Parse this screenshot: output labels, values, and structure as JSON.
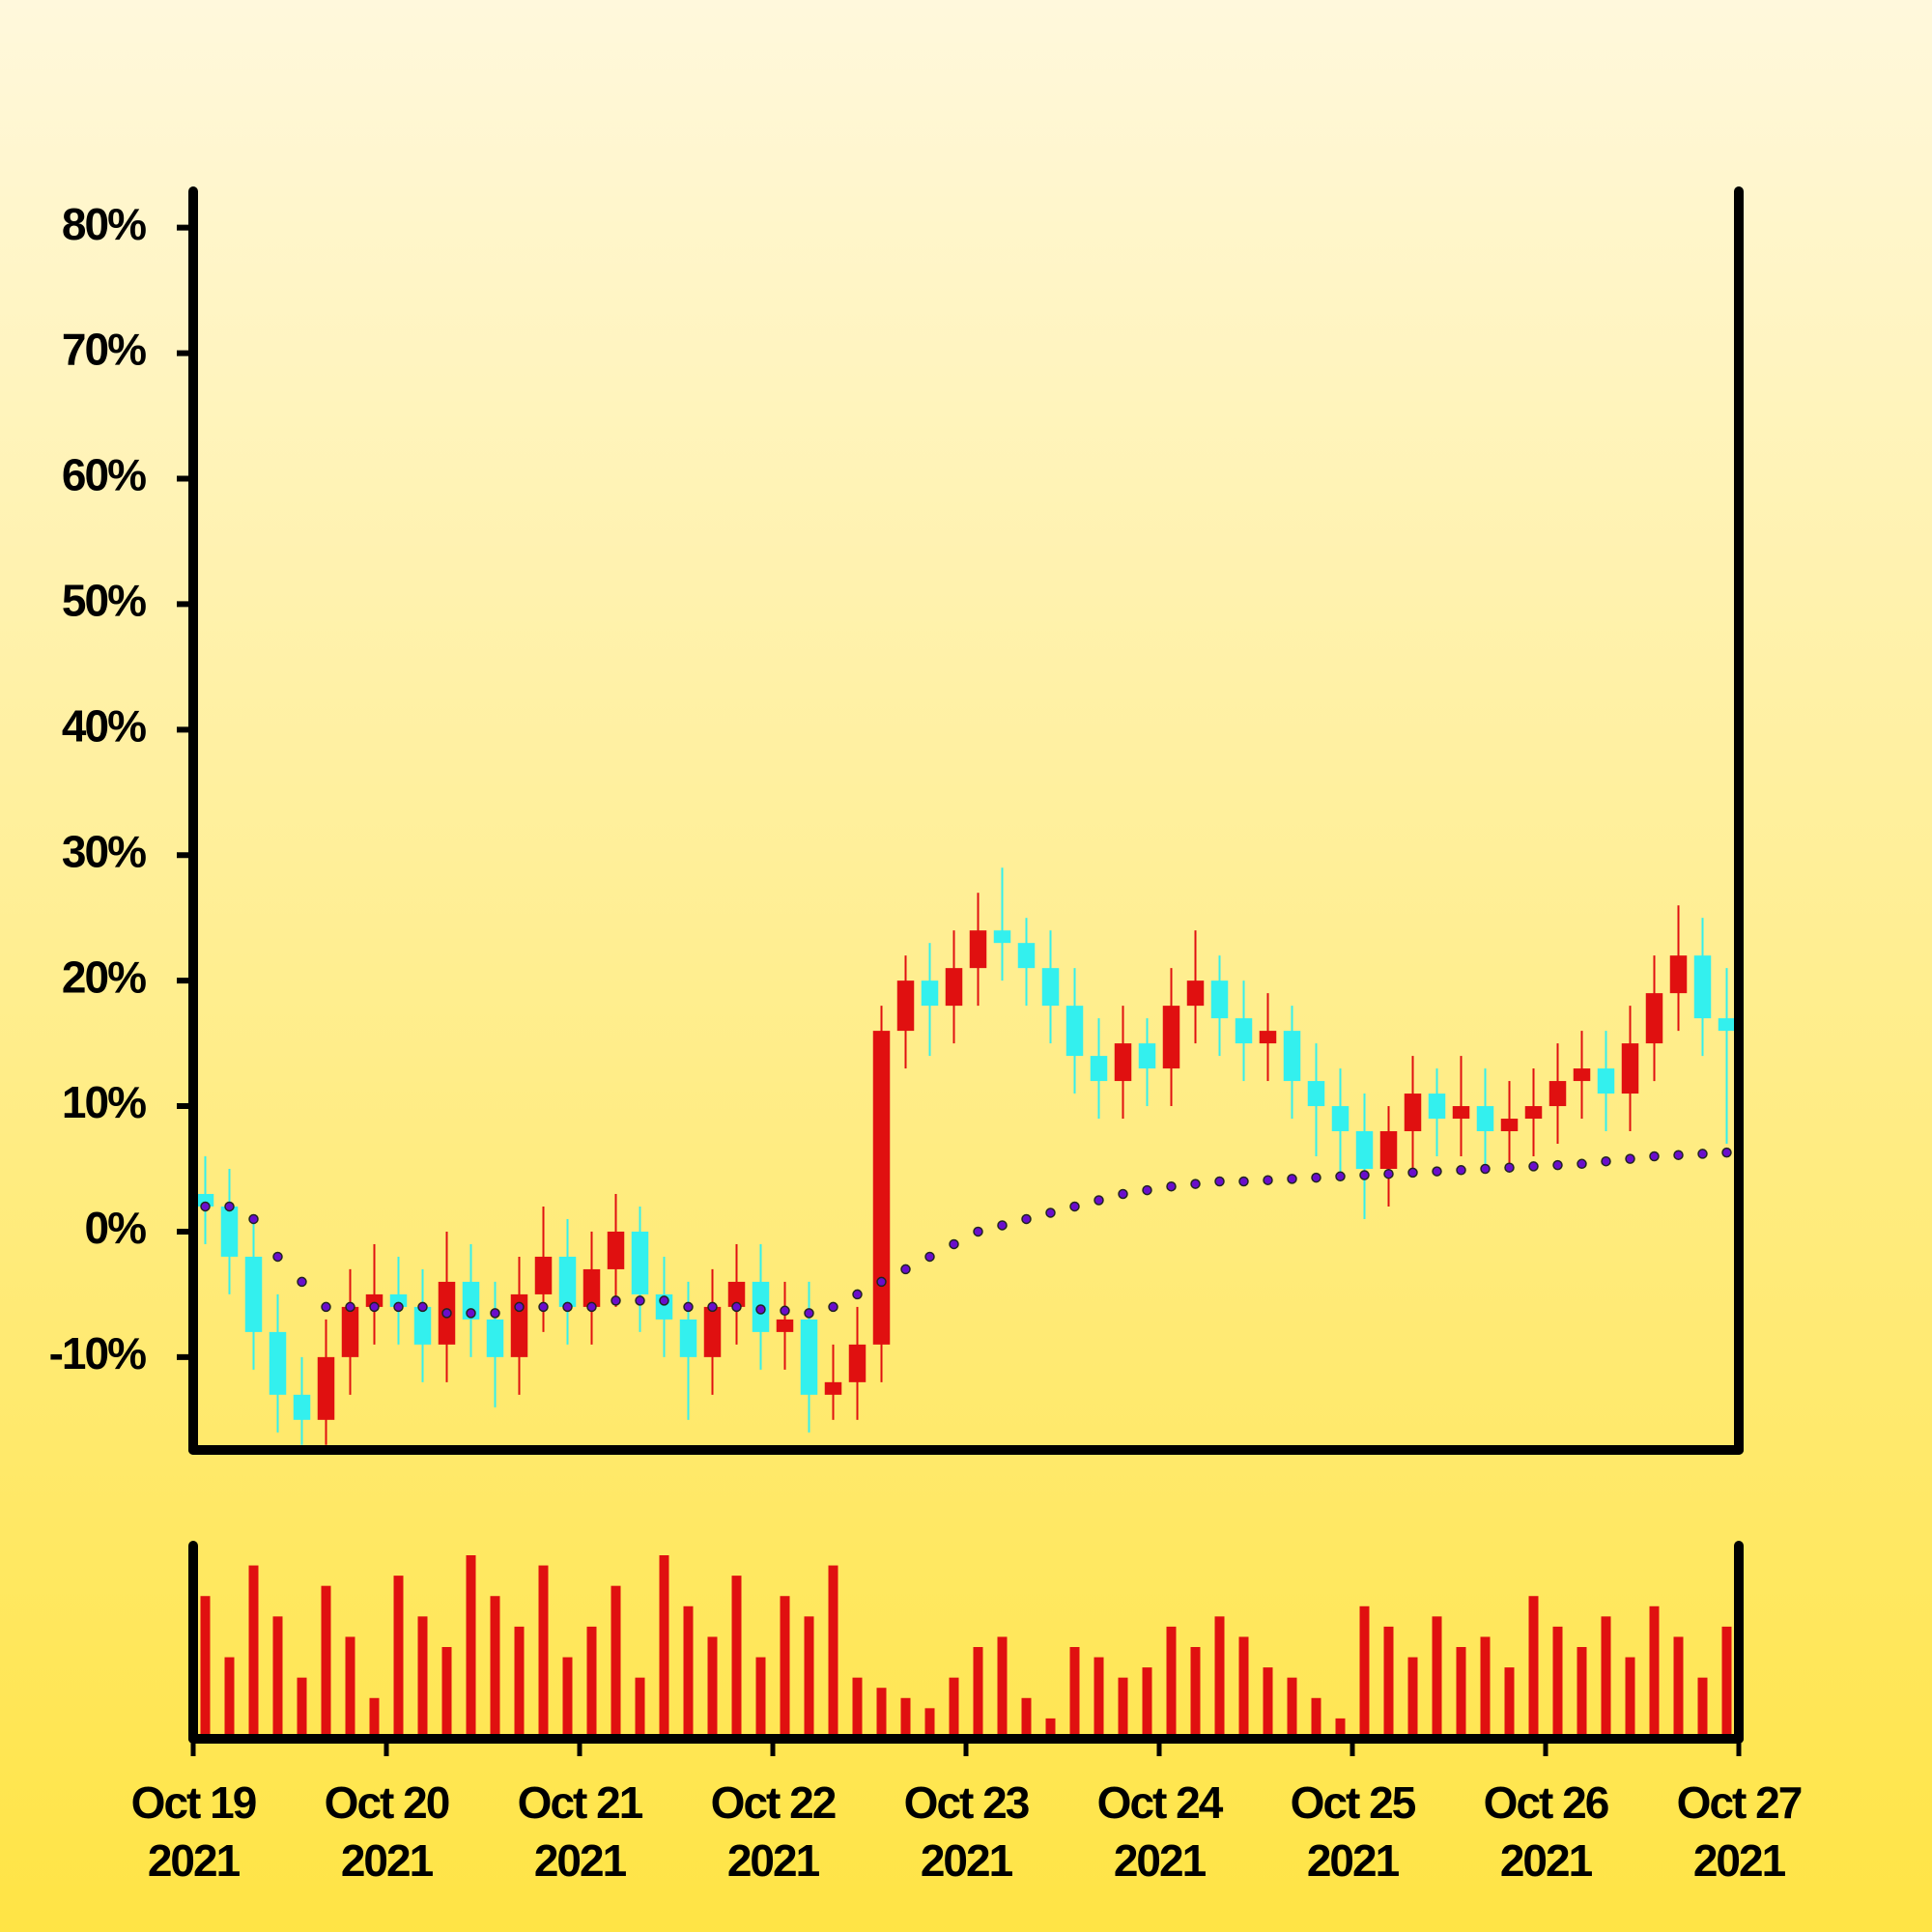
{
  "chart_data": {
    "type": "candlestick",
    "xlim": [
      "2021-10-19",
      "2021-10-27"
    ],
    "xticks": [
      {
        "value": "2021-10-19",
        "label": "Oct 19 2021"
      },
      {
        "value": "2021-10-20",
        "label": "Oct 20 2021"
      },
      {
        "value": "2021-10-21",
        "label": "Oct 21 2021"
      },
      {
        "value": "2021-10-22",
        "label": "Oct 22 2021"
      },
      {
        "value": "2021-10-23",
        "label": "Oct 23 2021"
      },
      {
        "value": "2021-10-24",
        "label": "Oct 24 2021"
      },
      {
        "value": "2021-10-25",
        "label": "Oct 25 2021"
      },
      {
        "value": "2021-10-26",
        "label": "Oct 26 2021"
      },
      {
        "value": "2021-10-27",
        "label": "Oct 27 2021"
      }
    ],
    "ylim": [
      -17.4,
      82.9
    ],
    "yticks": [
      {
        "value": -10,
        "label": "-10%"
      },
      {
        "value": 0,
        "label": "0%"
      },
      {
        "value": 10,
        "label": "10%"
      },
      {
        "value": 20,
        "label": "20%"
      },
      {
        "value": 30,
        "label": "30%"
      },
      {
        "value": 40,
        "label": "40%"
      },
      {
        "value": 50,
        "label": "50%"
      },
      {
        "value": 60,
        "label": "60%"
      },
      {
        "value": 70,
        "label": "70%"
      },
      {
        "value": 80,
        "label": "80%"
      }
    ],
    "up_color": "#e01010",
    "down_color": "#33f0ee",
    "open": [
      3,
      2,
      -2,
      -8,
      -13,
      -15,
      -10,
      -6,
      -5,
      -6,
      -9,
      -4,
      -7,
      -10,
      -5,
      -2,
      -6,
      -3,
      0,
      -5,
      -7,
      -10,
      -6,
      -4,
      -8,
      -7,
      -13,
      -12,
      -9,
      16,
      20,
      18,
      21,
      24,
      23,
      21,
      18,
      14,
      12,
      15,
      13,
      18,
      20,
      17,
      15,
      16,
      12,
      10,
      8,
      5,
      8,
      11,
      9,
      10,
      8,
      9,
      10,
      12,
      13,
      11,
      15,
      19,
      22,
      17
    ],
    "high": [
      6,
      5,
      1,
      -5,
      -10,
      -7,
      -3,
      -1,
      -2,
      -3,
      0,
      -1,
      -4,
      -2,
      2,
      1,
      0,
      3,
      2,
      -2,
      -4,
      -3,
      -1,
      -1,
      -4,
      -4,
      -9,
      -6,
      18,
      22,
      23,
      24,
      27,
      29,
      25,
      24,
      21,
      17,
      18,
      17,
      21,
      24,
      22,
      20,
      19,
      18,
      15,
      13,
      11,
      10,
      14,
      13,
      14,
      13,
      12,
      13,
      15,
      16,
      16,
      18,
      22,
      26,
      25,
      21
    ],
    "low": [
      -1,
      -5,
      -11,
      -16,
      -17,
      -17,
      -13,
      -9,
      -9,
      -12,
      -12,
      -10,
      -14,
      -13,
      -8,
      -9,
      -9,
      -6,
      -8,
      -10,
      -15,
      -13,
      -9,
      -11,
      -11,
      -16,
      -15,
      -15,
      -12,
      13,
      14,
      15,
      18,
      20,
      18,
      15,
      11,
      9,
      9,
      10,
      10,
      15,
      14,
      12,
      12,
      9,
      6,
      4,
      1,
      2,
      5,
      6,
      6,
      5,
      5,
      6,
      7,
      9,
      8,
      8,
      12,
      16,
      14,
      7
    ],
    "close": [
      2,
      -2,
      -8,
      -13,
      -15,
      -10,
      -6,
      -5,
      -6,
      -9,
      -4,
      -7,
      -10,
      -5,
      -2,
      -6,
      -3,
      0,
      -5,
      -7,
      -10,
      -6,
      -4,
      -8,
      -7,
      -13,
      -12,
      -9,
      16,
      20,
      18,
      21,
      24,
      23,
      21,
      18,
      14,
      12,
      15,
      13,
      18,
      20,
      17,
      15,
      16,
      12,
      10,
      8,
      5,
      8,
      11,
      9,
      10,
      8,
      9,
      10,
      12,
      13,
      11,
      15,
      19,
      22,
      17,
      16
    ],
    "moving_average": {
      "color": "#6a0dcc",
      "values": [
        2,
        2,
        1,
        -2,
        -4,
        -6,
        -6,
        -6,
        -6,
        -6,
        -6.5,
        -6.5,
        -6.5,
        -6,
        -6,
        -6,
        -6,
        -5.5,
        -5.5,
        -5.5,
        -6,
        -6,
        -6,
        -6.2,
        -6.3,
        -6.5,
        -6,
        -5,
        -4,
        -3,
        -2,
        -1,
        0,
        0.5,
        1,
        1.5,
        2,
        2.5,
        3,
        3.3,
        3.6,
        3.8,
        4,
        4,
        4.1,
        4.2,
        4.3,
        4.4,
        4.5,
        4.6,
        4.7,
        4.8,
        4.9,
        5,
        5.1,
        5.2,
        5.3,
        5.4,
        5.6,
        5.8,
        6,
        6.1,
        6.2,
        6.3
      ]
    },
    "volume": {
      "color": "#e01010",
      "values": [
        70,
        40,
        85,
        60,
        30,
        75,
        50,
        20,
        80,
        60,
        45,
        90,
        70,
        55,
        85,
        40,
        55,
        75,
        30,
        90,
        65,
        50,
        80,
        40,
        70,
        60,
        85,
        30,
        25,
        20,
        15,
        30,
        45,
        50,
        20,
        10,
        45,
        40,
        30,
        35,
        55,
        45,
        60,
        50,
        35,
        30,
        20,
        10,
        65,
        55,
        40,
        60,
        45,
        50,
        35,
        70,
        55,
        45,
        60,
        40,
        65,
        50,
        30,
        55
      ]
    }
  }
}
